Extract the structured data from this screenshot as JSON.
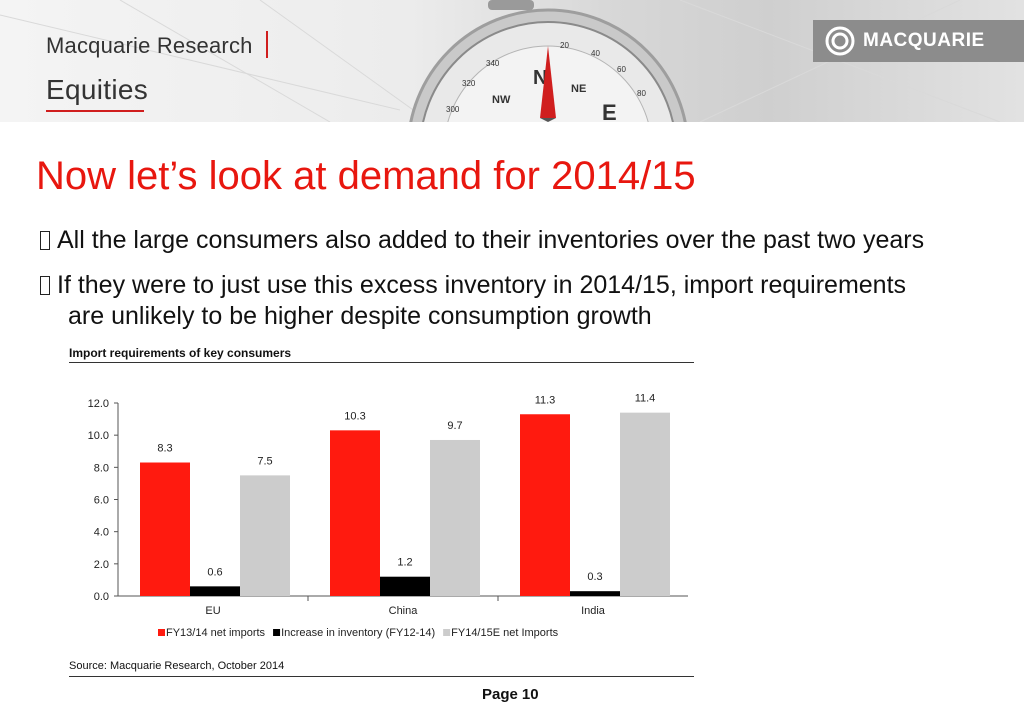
{
  "header": {
    "research_label": "Macquarie Research",
    "equities_label": "Equities",
    "logo_text": "MACQUARIE",
    "compass_text": [
      "N",
      "NE",
      "NW",
      "20",
      "40",
      "60",
      "80",
      "340",
      "320",
      "300",
      "E"
    ],
    "accent_color": "#d01e1e"
  },
  "slide": {
    "title": "Now let’s look at demand for 2014/15",
    "title_color": "#e8170f",
    "bullets": [
      "All the large consumers also added to their inventories over the past two years",
      "If they were to just use this excess inventory in 2014/15, import requirements",
      "are unlikely to be higher despite consumption growth"
    ]
  },
  "chart_data": {
    "type": "bar",
    "title": "Import requirements of key consumers",
    "categories": [
      "EU",
      "China",
      "India"
    ],
    "series": [
      {
        "name": "FY13/14 net imports",
        "values": [
          8.3,
          10.3,
          11.3
        ],
        "labels": [
          "8.3",
          "10.3",
          "11.3"
        ],
        "color": "#ff1a0f"
      },
      {
        "name": "Increase in inventory (FY12-14)",
        "values": [
          0.6,
          1.2,
          0.3
        ],
        "labels": [
          "0.6",
          "1.2",
          "0.3"
        ],
        "color": "#000000"
      },
      {
        "name": "FY14/15E net Imports",
        "values": [
          7.5,
          9.7,
          11.4
        ],
        "labels": [
          "7.5",
          "9.7",
          "11.4"
        ],
        "color": "#cccccc"
      }
    ],
    "ylim": [
      0,
      12
    ],
    "yticks": [
      "0.0",
      "2.0",
      "4.0",
      "6.0",
      "8.0",
      "10.0",
      "12.0"
    ],
    "xlabel": "",
    "ylabel": "",
    "grid": false,
    "legend": "bottom",
    "source": "Source: Macquarie Research, October 2014"
  },
  "footer": {
    "page_label": "Page",
    "page_number": "10"
  }
}
